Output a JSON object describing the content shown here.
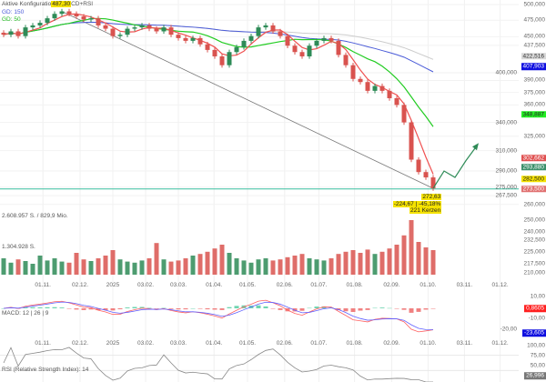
{
  "header": {
    "title_a": "Aktive Konfiguratio",
    "price_tag": "487,30",
    "title_b": "CD+RSI",
    "gd150": "GD: 150",
    "gd50": "GD: 50"
  },
  "colors": {
    "up": "#2e8b57",
    "down": "#d9534f",
    "gd150": "#4a5bd8",
    "gd50": "#22cc22",
    "ma_red": "#f05050",
    "gd200": "#cccccc",
    "support": "#3cbfa0"
  },
  "measure": {
    "price": "272,63",
    "change": "-224,67 | -45,18%",
    "bars": "221 Kerzen"
  },
  "volume": {
    "label_total": "2.608.957 S. / 829,9 Mio.",
    "label_max": "1.304.928 S."
  },
  "macd": {
    "label": "MACD: 12 | 26 | 9"
  },
  "rsi": {
    "label": "RSI (Relative Strength Index): 14"
  },
  "axis": {
    "main_ticks": [
      "500,000",
      "475,000",
      "450,000",
      "437,500",
      "400,000",
      "390,000",
      "375,000",
      "360,000",
      "340,000",
      "325,000",
      "310,000",
      "290,000",
      "275,000",
      "267,500",
      "260,000"
    ],
    "badges": [
      {
        "v": "422,516",
        "c": "#d8d8d8",
        "fg": "#333",
        "p": 422.5
      },
      {
        "v": "407,903",
        "c": "#1010e0",
        "fg": "#fff",
        "p": 407.9
      },
      {
        "v": "348,887",
        "c": "#22ee22",
        "fg": "#222",
        "p": 348.9
      },
      {
        "v": "302,662",
        "c": "#e05050",
        "fg": "#fff",
        "p": 302.7
      },
      {
        "v": "293,880",
        "c": "#3a8f6a",
        "fg": "#fff",
        "p": 293.9
      },
      {
        "v": "282,500",
        "c": "#f5e200",
        "fg": "#222",
        "p": 282.5
      },
      {
        "v": "273,500",
        "c": "#e07070",
        "fg": "#fff",
        "p": 273.5
      }
    ],
    "volume_ticks": [
      "250,000",
      "240,000",
      "232,500",
      "225,000",
      "217,500",
      "210,000"
    ],
    "macd_ticks": [
      "10,00",
      "-10,00",
      "-20,00"
    ],
    "macd_badge_red": "0,8605",
    "macd_badge_blue": "-23,605",
    "rsi_ticks": [
      "100,00",
      "75,00",
      "50,00"
    ],
    "rsi_badge": "26,996"
  },
  "chart_data": {
    "type": "candlestick",
    "title": "Aktive Konfiguration MACD+RSI",
    "scale": "log",
    "ylim": [
      260,
      500
    ],
    "x_labels": [
      {
        "t": "01.11.",
        "i": 5.4
      },
      {
        "t": "02.12.",
        "i": 10.5
      },
      {
        "t": "2025",
        "i": 15
      },
      {
        "t": "03.02.",
        "i": 19.5
      },
      {
        "t": "03.03.",
        "i": 24
      },
      {
        "t": "01.04.",
        "i": 28.9
      },
      {
        "t": "01.05.",
        "i": 33.5
      },
      {
        "t": "02.06.",
        "i": 38.6
      },
      {
        "t": "01.07.",
        "i": 43.3
      },
      {
        "t": "01.08.",
        "i": 48.2
      },
      {
        "t": "02.09.",
        "i": 53.3
      },
      {
        "t": "01.10.",
        "i": 58.3
      },
      {
        "t": "03.11.",
        "i": 63.3
      },
      {
        "t": "01.12.",
        "i": 68.2
      }
    ],
    "close": [
      453,
      458,
      451,
      464,
      467,
      471,
      478,
      485,
      489,
      485,
      481,
      476,
      478,
      467,
      462,
      451,
      453,
      462,
      464,
      467,
      462,
      458,
      464,
      453,
      448,
      444,
      448,
      439,
      431,
      422,
      410,
      428,
      435,
      444,
      451,
      464,
      467,
      458,
      451,
      437,
      428,
      422,
      437,
      444,
      448,
      444,
      424,
      410,
      392,
      388,
      377,
      383,
      377,
      368,
      360,
      340,
      301,
      289,
      284,
      274
    ],
    "volume": [
      30,
      22,
      28,
      25,
      20,
      35,
      26,
      30,
      24,
      22,
      40,
      28,
      25,
      30,
      35,
      45,
      28,
      24,
      22,
      26,
      30,
      58,
      28,
      24,
      26,
      30,
      35,
      38,
      42,
      48,
      55,
      40,
      30,
      26,
      22,
      28,
      30,
      26,
      28,
      32,
      35,
      38,
      30,
      28,
      26,
      30,
      38,
      42,
      45,
      40,
      46,
      38,
      42,
      48,
      55,
      72,
      100,
      60,
      50,
      45
    ],
    "projection": [
      274,
      290,
      284,
      300,
      315
    ],
    "support_level": 273.5,
    "trendline": [
      489,
      274
    ]
  }
}
